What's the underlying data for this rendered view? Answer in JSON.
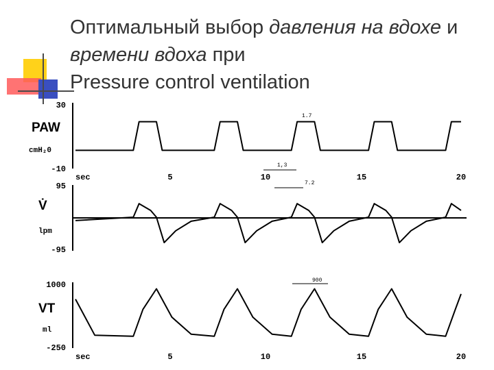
{
  "title": {
    "part1": "Оптимальный выбор ",
    "part2_italic": "давления на вдохе",
    "part3": " и ",
    "part4_italic": "времени вдоха",
    "part5": " при",
    "part6": "Pressure control ventilation"
  },
  "chart_data": [
    {
      "type": "line",
      "quantity_label": "PAW",
      "unit_label": "cmH₂0",
      "ylim": [
        -10,
        30
      ],
      "y_tick_labels": [
        "30",
        "0",
        "-10"
      ],
      "x_axis_label": "sec",
      "x_tick_labels": [
        "5",
        "10",
        "15",
        "20"
      ],
      "xlim": [
        0,
        20
      ],
      "annotations": [
        "1,3",
        "1.7"
      ],
      "series": [
        {
          "x": [
            0,
            3.0,
            3.3,
            4.2,
            4.5,
            7.2,
            7.5,
            8.4,
            8.7,
            11.2,
            11.5,
            12.4,
            12.7,
            15.2,
            15.5,
            16.4,
            16.7,
            19.2,
            19.5,
            20
          ],
          "y": [
            1,
            1,
            19,
            19,
            1,
            1,
            19,
            19,
            1,
            1,
            19,
            19,
            1,
            1,
            19,
            19,
            1,
            1,
            19,
            19
          ]
        }
      ]
    },
    {
      "type": "line",
      "quantity_label": "V̇",
      "unit_label": "lpm",
      "ylim": [
        -95,
        95
      ],
      "y_tick_labels": [
        "95",
        "-95"
      ],
      "annotations": [
        "7.2"
      ],
      "series": [
        {
          "x": [
            0,
            3.0,
            3.3,
            3.9,
            4.2,
            4.6,
            5.2,
            6.0,
            7.2,
            7.5,
            8.1,
            8.4,
            8.8,
            9.4,
            10.2,
            11.2,
            11.5,
            12.1,
            12.4,
            12.8,
            13.4,
            14.2,
            15.2,
            15.5,
            16.1,
            16.4,
            16.8,
            17.4,
            18.2,
            19.2,
            19.5,
            20
          ],
          "y": [
            -10,
            0,
            40,
            20,
            0,
            -75,
            -40,
            -12,
            0,
            40,
            20,
            0,
            -75,
            -40,
            -12,
            0,
            40,
            20,
            0,
            -75,
            -40,
            -12,
            0,
            40,
            20,
            0,
            -75,
            -40,
            -12,
            0,
            40,
            20
          ]
        }
      ]
    },
    {
      "type": "line",
      "quantity_label": "VT",
      "unit_label": "ml",
      "ylim": [
        -250,
        1000
      ],
      "y_tick_labels": [
        "1000",
        "-250"
      ],
      "x_axis_label": "sec",
      "x_tick_labels": [
        "5",
        "10",
        "15",
        "20"
      ],
      "xlim": [
        0,
        20
      ],
      "annotations": [
        "900"
      ],
      "series": [
        {
          "x": [
            0,
            1.0,
            3.0,
            3.5,
            4.2,
            5.0,
            6.0,
            7.2,
            7.7,
            8.4,
            9.2,
            10.2,
            11.2,
            11.7,
            12.4,
            13.2,
            14.2,
            15.2,
            15.7,
            16.4,
            17.2,
            18.2,
            19.2,
            19.7,
            20
          ],
          "y": [
            700,
            0,
            -20,
            500,
            900,
            350,
            20,
            -20,
            500,
            900,
            350,
            20,
            -20,
            500,
            900,
            350,
            20,
            -20,
            500,
            900,
            350,
            20,
            -20,
            500,
            800
          ]
        }
      ]
    }
  ]
}
